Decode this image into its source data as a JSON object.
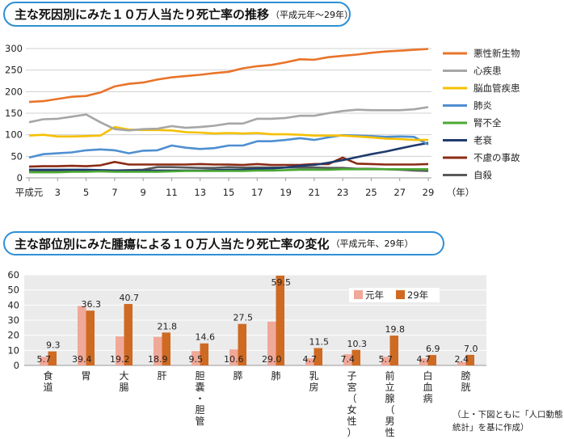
{
  "chart1": {
    "title": "主な死因別にみた１０万人当たり死亡率の推移",
    "subtitle": "（平成元年～29年）",
    "chart_data": {
      "type": "line",
      "x": [
        "平成元",
        "2",
        "3",
        "4",
        "5",
        "6",
        "7",
        "8",
        "9",
        "10",
        "11",
        "12",
        "13",
        "14",
        "15",
        "16",
        "17",
        "18",
        "19",
        "20",
        "21",
        "22",
        "23",
        "24",
        "25",
        "26",
        "27",
        "28",
        "29"
      ],
      "x_tick_labels": [
        "平成元",
        "3",
        "5",
        "7",
        "9",
        "11",
        "13",
        "15",
        "17",
        "19",
        "21",
        "23",
        "25",
        "27",
        "29"
      ],
      "x_unit": "（年）",
      "yticks": [
        0,
        50,
        100,
        150,
        200,
        250,
        300
      ],
      "ylim": [
        0,
        300
      ],
      "grid": true,
      "legend_position": "right",
      "series": [
        {
          "name": "悪性新生物",
          "color": "#e8742a",
          "values": [
            176,
            178,
            183,
            188,
            190,
            198,
            212,
            218,
            221,
            228,
            233,
            236,
            239,
            243,
            246,
            254,
            259,
            262,
            268,
            275,
            274,
            280,
            283,
            286,
            290,
            293,
            295,
            297,
            299
          ]
        },
        {
          "name": "心疾患",
          "color": "#a6a6a6",
          "values": [
            129,
            136,
            137,
            142,
            147,
            129,
            113,
            110,
            113,
            114,
            120,
            116,
            118,
            121,
            126,
            126,
            137,
            137,
            139,
            144,
            144,
            150,
            155,
            158,
            157,
            157,
            157,
            159,
            164
          ]
        },
        {
          "name": "脳血管疾患",
          "color": "#f5c000",
          "values": [
            98,
            100,
            96,
            96,
            97,
            98,
            118,
            112,
            111,
            111,
            110,
            106,
            105,
            103,
            104,
            103,
            104,
            101,
            101,
            100,
            98,
            98,
            98,
            96,
            94,
            91,
            90,
            88,
            88
          ]
        },
        {
          "name": "肺炎",
          "color": "#4f8fd0",
          "values": [
            47,
            55,
            57,
            59,
            64,
            66,
            64,
            57,
            63,
            64,
            75,
            70,
            67,
            69,
            75,
            75,
            85,
            85,
            88,
            92,
            88,
            94,
            99,
            98,
            97,
            95,
            96,
            95,
            77
          ]
        },
        {
          "name": "腎不全",
          "color": "#4aa832",
          "values": [
            13,
            13,
            13,
            14,
            14,
            15,
            14,
            14,
            14,
            14,
            15,
            16,
            16,
            16,
            16,
            16,
            17,
            17,
            18,
            19,
            19,
            19,
            20,
            20,
            20,
            20,
            20,
            20,
            20
          ]
        },
        {
          "name": "老衰",
          "color": "#1f3b6e",
          "values": [
            19,
            19,
            19,
            19,
            19,
            18,
            17,
            17,
            17,
            17,
            17,
            17,
            17,
            18,
            19,
            19,
            21,
            22,
            24,
            28,
            30,
            35,
            41,
            48,
            55,
            61,
            68,
            75,
            81
          ]
        },
        {
          "name": "不慮の事故",
          "color": "#8b2a14",
          "values": [
            26,
            27,
            27,
            28,
            27,
            29,
            37,
            31,
            31,
            31,
            31,
            31,
            32,
            31,
            31,
            30,
            32,
            30,
            30,
            30,
            32,
            32,
            47,
            33,
            32,
            31,
            31,
            31,
            32
          ]
        },
        {
          "name": "自殺",
          "color": "#595959",
          "values": [
            18,
            17,
            17,
            17,
            17,
            17,
            17,
            18,
            19,
            25,
            25,
            24,
            23,
            23,
            25,
            24,
            24,
            24,
            24,
            24,
            24,
            23,
            23,
            21,
            21,
            20,
            19,
            17,
            16
          ]
        }
      ]
    }
  },
  "chart2": {
    "title": "主な部位別にみた腫瘍による１０万人当たり死亡率の変化",
    "subtitle": "（平成元年、29年）",
    "chart_data": {
      "type": "bar",
      "categories": [
        "食道",
        "胃",
        "大腸",
        "肝",
        "胆嚢・胆管",
        "膵",
        "肺",
        "乳房",
        "子宮（女性）",
        "前立腺（男性）",
        "白血病",
        "膀胱"
      ],
      "yticks": [
        0,
        10,
        20,
        30,
        40,
        50,
        60
      ],
      "ylim": [
        0,
        60
      ],
      "grid": true,
      "legend_position": "top-right",
      "series": [
        {
          "name": "元年",
          "color": "#f0a898",
          "values": [
            5.7,
            39.4,
            19.2,
            18.9,
            9.5,
            10.6,
            29.0,
            4.7,
            7.4,
            5.7,
            4.7,
            2.4
          ],
          "labels": [
            "5.7",
            "39.4",
            "19.2",
            "18.9",
            "9.5",
            "10.6",
            "29.0",
            "4.7",
            "7.4",
            "5.7",
            "4.7",
            "2.4"
          ]
        },
        {
          "name": "29年",
          "color": "#cf6a22",
          "values": [
            9.3,
            36.3,
            40.7,
            21.8,
            14.6,
            27.5,
            59.5,
            11.5,
            10.3,
            19.8,
            6.9,
            7.0
          ],
          "labels": [
            "9.3",
            "36.3",
            "40.7",
            "21.8",
            "14.6",
            "27.5",
            "59.5",
            "11.5",
            "10.3",
            "19.8",
            "6.9",
            "7.0"
          ]
        }
      ]
    }
  },
  "footnote": {
    "line1": "（上・下図ともに「人口動態",
    "line2": "統計」を基に作成）"
  }
}
